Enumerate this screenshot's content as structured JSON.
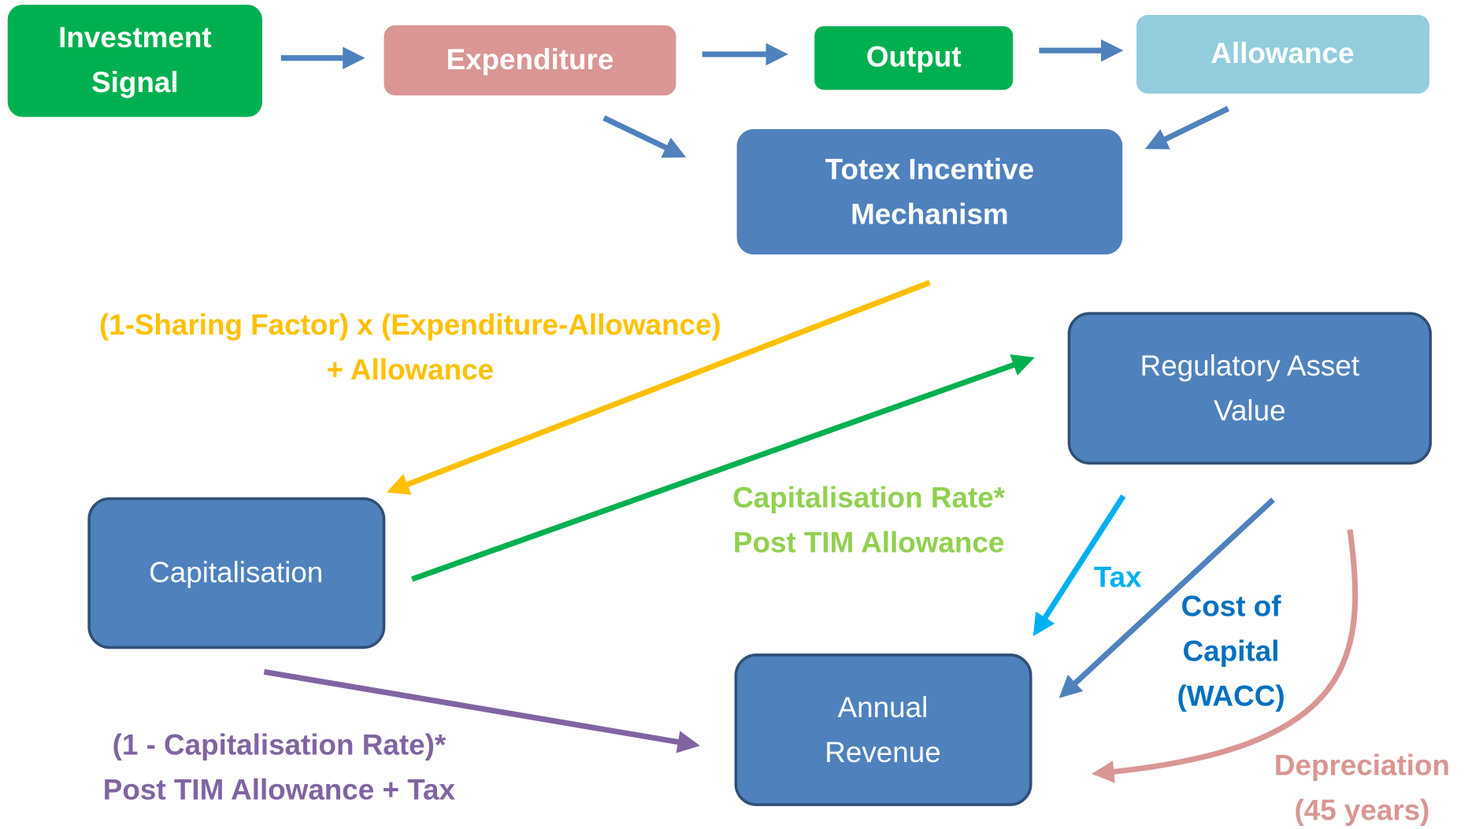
{
  "nodes": [
    {
      "lines": [
        "Investment",
        "Signal"
      ]
    },
    {
      "lines": [
        "Expenditure"
      ]
    },
    {
      "lines": [
        "Output"
      ]
    },
    {
      "lines": [
        "Allowance"
      ]
    },
    {
      "lines": [
        "Totex Incentive",
        "Mechanism"
      ]
    },
    {
      "lines": [
        "Regulatory Asset",
        "Value"
      ]
    },
    {
      "lines": [
        "Capitalisation"
      ]
    },
    {
      "lines": [
        "Annual",
        "Revenue"
      ]
    }
  ],
  "edge_labels": [
    {
      "lines": [
        "(1-Sharing Factor) x (Expenditure-Allowance)",
        "+ Allowance"
      ]
    },
    {
      "lines": [
        "Capitalisation Rate*",
        "Post TIM Allowance"
      ]
    },
    {
      "lines": [
        "Tax"
      ]
    },
    {
      "lines": [
        "Cost of",
        "Capital",
        "(WACC)"
      ]
    },
    {
      "lines": [
        "Depreciation",
        "(45 years)"
      ]
    },
    {
      "lines": [
        "(1 - Capitalisation Rate)*",
        "Post TIM Allowance + Tax"
      ]
    }
  ]
}
